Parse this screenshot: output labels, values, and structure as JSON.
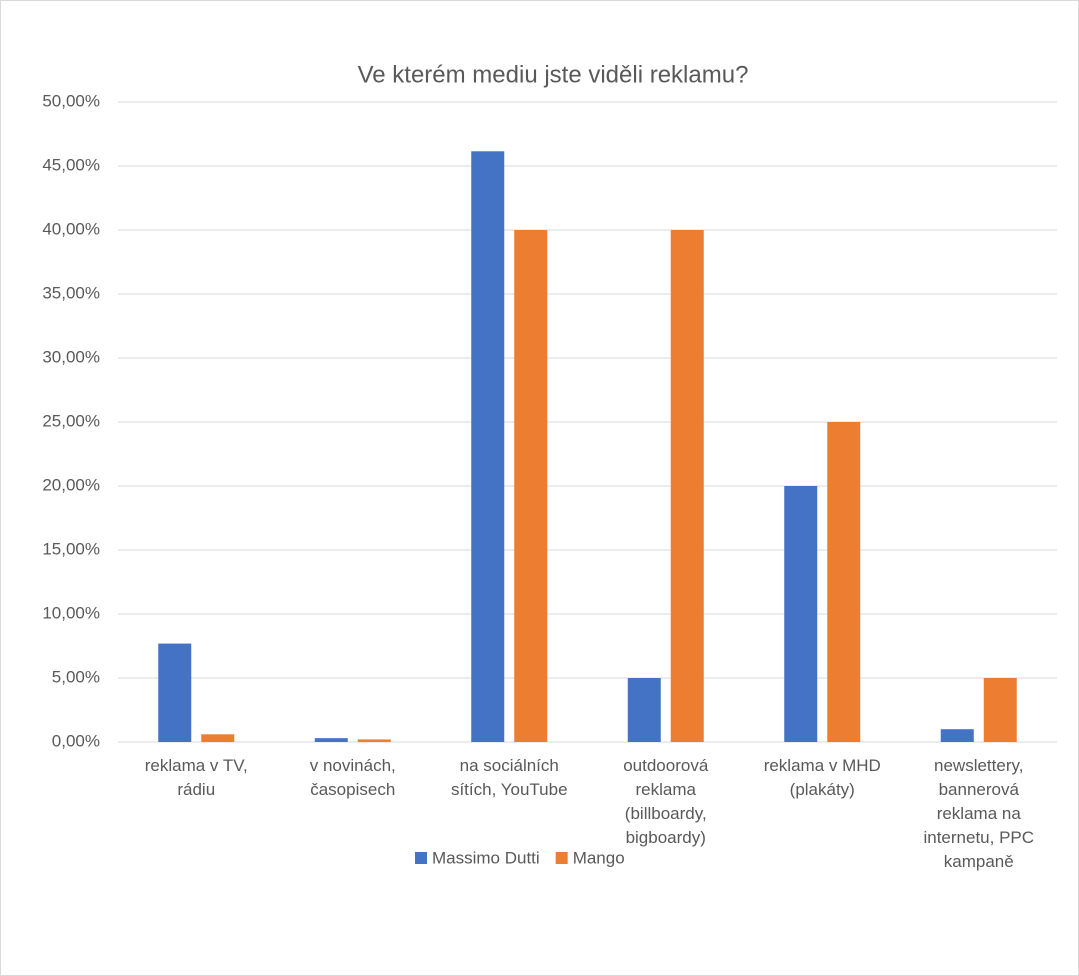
{
  "chart_data": {
    "type": "bar",
    "title": "Ve kterém mediu jste viděli reklamu?",
    "categories": [
      "reklama v TV, rádiu",
      "v novinách, časopisech",
      "na sociálních sítích, YouTube",
      "outdoorová reklama (billboardy, bigboardy)",
      "reklama v MHD (plakáty)",
      "newslettery, bannerová reklama na internetu, PPC kampaně"
    ],
    "series": [
      {
        "name": "Massimo Dutti",
        "color": "#4472c4",
        "values": [
          7.69,
          0.3,
          46.15,
          5,
          20,
          1
        ]
      },
      {
        "name": "Mango",
        "color": "#ed7d31",
        "values": [
          0.6,
          0.2,
          40,
          40,
          25,
          5
        ]
      }
    ],
    "ylim": [
      0,
      50
    ],
    "yticks": [
      {
        "value": 0,
        "label": "0,00%"
      },
      {
        "value": 5,
        "label": "5,00%"
      },
      {
        "value": 10,
        "label": "10,00%"
      },
      {
        "value": 15,
        "label": "15,00%"
      },
      {
        "value": 20,
        "label": "20,00%"
      },
      {
        "value": 25,
        "label": "25,00%"
      },
      {
        "value": 30,
        "label": "30,00%"
      },
      {
        "value": 35,
        "label": "35,00%"
      },
      {
        "value": 40,
        "label": "40,00%"
      },
      {
        "value": 45,
        "label": "45,00%"
      },
      {
        "value": 50,
        "label": "50,00%"
      }
    ],
    "grid": true,
    "legend": "bottom"
  }
}
